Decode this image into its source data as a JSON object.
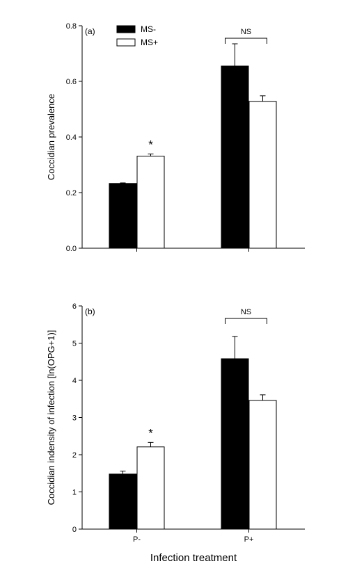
{
  "xlabel": "Infection treatment",
  "legend": [
    {
      "label": "MS-",
      "color": "#000000"
    },
    {
      "label": "MS+",
      "color": "#ffffff"
    }
  ],
  "chart_data": [
    {
      "type": "bar",
      "panel_label": "(a)",
      "ylabel": "Coccidian prevalence",
      "ylim": [
        0,
        0.8
      ],
      "yticks": [
        "0.0",
        "0.2",
        "0.4",
        "0.6",
        "0.8"
      ],
      "categories": [
        "P-",
        "P+"
      ],
      "series": [
        {
          "name": "MS-",
          "values": [
            0.233,
            0.655
          ],
          "errors": [
            0.002,
            0.08
          ]
        },
        {
          "name": "MS+",
          "values": [
            0.331,
            0.528
          ],
          "errors": [
            0.008,
            0.02
          ]
        }
      ],
      "annotations": [
        {
          "text": "*",
          "category": "P-",
          "series": "MS+"
        },
        {
          "text": "NS",
          "category": "P+",
          "bracket": true
        }
      ],
      "legend_position": "top-left"
    },
    {
      "type": "bar",
      "panel_label": "(b)",
      "ylabel": "Coccidian indensity of infection [ln(OPG+1)]",
      "ylim": [
        0,
        6
      ],
      "yticks": [
        "0",
        "1",
        "2",
        "3",
        "4",
        "5",
        "6"
      ],
      "categories": [
        "P-",
        "P+"
      ],
      "series": [
        {
          "name": "MS-",
          "values": [
            1.48,
            4.58
          ],
          "errors": [
            0.08,
            0.6
          ]
        },
        {
          "name": "MS+",
          "values": [
            2.21,
            3.46
          ],
          "errors": [
            0.12,
            0.15
          ]
        }
      ],
      "annotations": [
        {
          "text": "*",
          "category": "P-",
          "series": "MS+"
        },
        {
          "text": "NS",
          "category": "P+",
          "bracket": true
        }
      ]
    }
  ]
}
